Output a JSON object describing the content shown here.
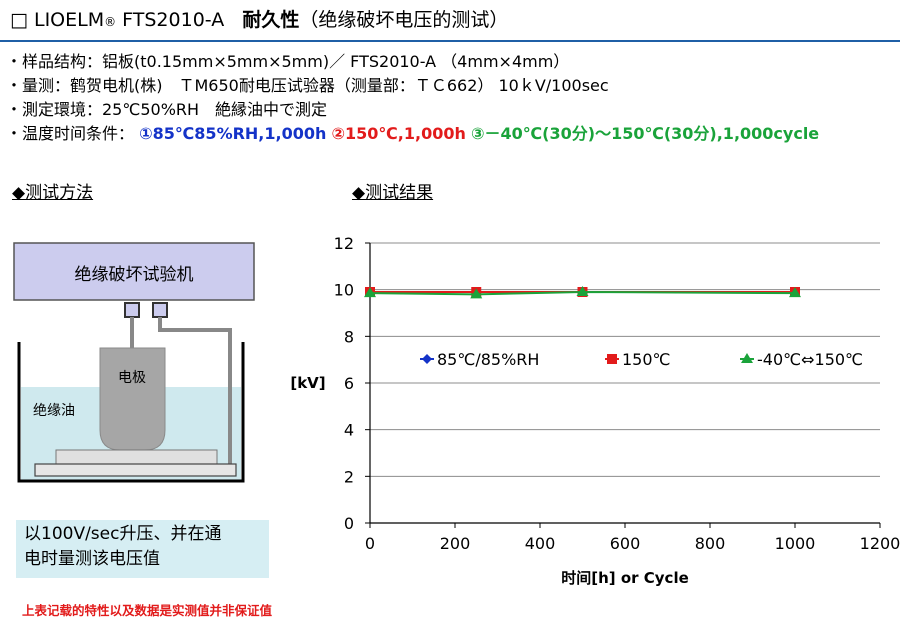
{
  "title": {
    "prefix": "□ LIOELM",
    "reg": "®",
    "product": " FTS2010-A",
    "main": "耐久性",
    "sub": "（绝缘破坏电压的测试）"
  },
  "info": {
    "sample": "・样品结构：铝板(t0.15mm×5mm×5mm)／ FTS2010-A （4mm×4mm）",
    "measure": "・量测：鹤贺电机(株)　ＴM650耐电压试验器（测量部：ＴＣ662） 10ｋV/100sec",
    "environment": "・測定環境：25℃50%RH　絶縁油中で測定",
    "conditions_label": "・温度时间条件：",
    "cond1": "①85℃85%RH,1,000h",
    "cond2": "②150℃,1,000h",
    "cond3": "③－40℃(30分)～150℃(30分),1,000cycle"
  },
  "method": {
    "heading": "◆测试方法",
    "machine_label": "绝缘破坏试验机",
    "electrode_label": "电极",
    "oil_label": "绝缘油",
    "note_line1": "以100V/sec升压、并在通",
    "note_line2": "电时量测该电压值"
  },
  "results": {
    "heading": "◆测试结果"
  },
  "disclaimer": "上表记载的特性以及数据是实测值并非保证值",
  "colors": {
    "blue": "#1433c8",
    "red": "#e21b1b",
    "green": "#1aa33a",
    "oil": "#cfe9ee"
  },
  "chart_data": {
    "type": "line",
    "xlabel": "时间[h] or Cycle",
    "ylabel": "[kV]",
    "xlim": [
      0,
      1200
    ],
    "ylim": [
      0,
      12
    ],
    "xticks": [
      0,
      200,
      400,
      600,
      800,
      1000,
      1200
    ],
    "yticks": [
      0,
      2,
      4,
      6,
      8,
      10,
      12
    ],
    "grid": "horizontal",
    "legend": "inside-middle",
    "series": [
      {
        "name": "85℃/85%RH",
        "color": "#1433c8",
        "marker": "diamond",
        "x": [
          0,
          250,
          500,
          1000
        ],
        "y": [
          9.9,
          9.9,
          9.9,
          9.9
        ]
      },
      {
        "name": "150℃",
        "color": "#e21b1b",
        "marker": "square",
        "x": [
          0,
          250,
          500,
          1000
        ],
        "y": [
          9.9,
          9.9,
          9.9,
          9.9
        ]
      },
      {
        "name": "-40℃⇔150℃",
        "color": "#1aa33a",
        "marker": "triangle",
        "x": [
          0,
          250,
          500,
          1000
        ],
        "y": [
          9.85,
          9.8,
          9.9,
          9.85
        ]
      }
    ]
  }
}
